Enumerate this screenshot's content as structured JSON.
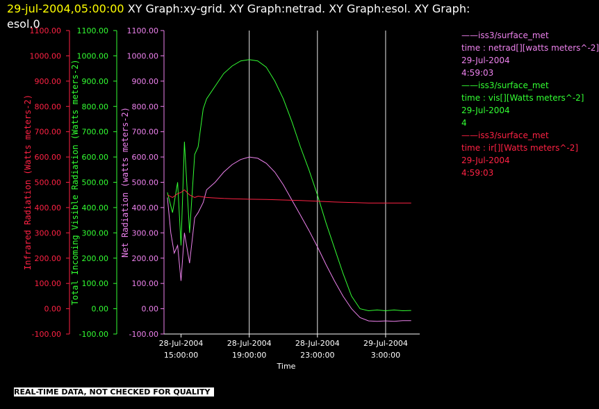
{
  "header": {
    "time": "29-jul-2004,05:00:00",
    "title_rest": "XY Graph:xy-grid.  XY Graph:netrad.  XY Graph:esol.  XY Graph:",
    "title_line2": "esol.0"
  },
  "legend": [
    {
      "line1": "iss3/surface_met",
      "line2": "time : netrad[][watts meters^-2]",
      "line3": "29-Jul-2004",
      "line4": "4:59:03",
      "color": "#ee82ee"
    },
    {
      "line1": "iss3/surface_met",
      "line2": "time : vis[][Watts meters^-2]",
      "line3": "29-Jul-2004",
      "line4": "4",
      "color": "#33ff33"
    },
    {
      "line1": "iss3/surface_met",
      "line2": "time : ir[][Watts meters^-2]",
      "line3": "29-Jul-2004",
      "line4": "4:59:03",
      "color": "#ff2244"
    }
  ],
  "notice": "REAL-TIME DATA, NOT CHECKED FOR QUALITY",
  "chart_data": {
    "type": "line",
    "xlabel": "Time",
    "xlim": [
      14.0,
      29.0
    ],
    "x_ticks": [
      {
        "t": 15,
        "line1": "28-Jul-2004",
        "line2": "15:00:00"
      },
      {
        "t": 19,
        "line1": "28-Jul-2004",
        "line2": "19:00:00"
      },
      {
        "t": 23,
        "line1": "28-Jul-2004",
        "line2": "23:00:00"
      },
      {
        "t": 27,
        "line1": "29-Jul-2004",
        "line2": "3:00:00"
      }
    ],
    "axes": [
      {
        "id": "ir",
        "label": "Infrared Radiation (Watts meters-2)",
        "color": "#ff2244",
        "ylim": [
          -100,
          1100
        ]
      },
      {
        "id": "vis",
        "label": "Total Incoming Visible Radiation (Watts meters-2)",
        "color": "#33ff33",
        "ylim": [
          -100,
          1100
        ]
      },
      {
        "id": "net",
        "label": "Net Radiation (watts meters-2)",
        "color": "#ee82ee",
        "ylim": [
          -100,
          1100
        ]
      }
    ],
    "y_ticks": [
      -100,
      0,
      100,
      200,
      300,
      400,
      500,
      600,
      700,
      800,
      900,
      1000,
      1100
    ],
    "grid_x": [
      19,
      23,
      27
    ],
    "series": [
      {
        "axis": "vis",
        "color": "#33ff33",
        "x": [
          14.2,
          14.5,
          14.8,
          15.0,
          15.2,
          15.5,
          15.8,
          16.0,
          16.3,
          16.5,
          17.0,
          17.5,
          18.0,
          18.5,
          19.0,
          19.5,
          20.0,
          20.5,
          21.0,
          21.5,
          22.0,
          22.5,
          23.0,
          23.5,
          24.0,
          24.5,
          25.0,
          25.5,
          26.0,
          26.5,
          27.0,
          27.5,
          28.0,
          28.5
        ],
        "y": [
          460,
          380,
          500,
          250,
          660,
          300,
          610,
          640,
          790,
          830,
          880,
          930,
          960,
          980,
          985,
          980,
          955,
          900,
          830,
          740,
          640,
          550,
          450,
          340,
          240,
          140,
          50,
          0,
          -8,
          -5,
          -8,
          -5,
          -8,
          -7
        ]
      },
      {
        "axis": "net",
        "color": "#ee82ee",
        "x": [
          14.2,
          14.4,
          14.6,
          14.8,
          15.0,
          15.2,
          15.5,
          15.8,
          16.0,
          16.3,
          16.5,
          17.0,
          17.5,
          18.0,
          18.5,
          19.0,
          19.5,
          20.0,
          20.5,
          21.0,
          21.5,
          22.0,
          22.5,
          23.0,
          23.5,
          24.0,
          24.5,
          25.0,
          25.5,
          26.0,
          26.5,
          27.0,
          27.5,
          28.0,
          28.5
        ],
        "y": [
          440,
          300,
          220,
          250,
          110,
          300,
          180,
          360,
          380,
          420,
          470,
          500,
          540,
          570,
          590,
          600,
          595,
          575,
          540,
          490,
          430,
          370,
          310,
          245,
          175,
          110,
          50,
          0,
          -35,
          -48,
          -50,
          -48,
          -50,
          -47,
          -47
        ]
      },
      {
        "axis": "ir",
        "color": "#ff2244",
        "x": [
          14.2,
          14.5,
          14.8,
          15.0,
          15.2,
          15.5,
          15.8,
          16.0,
          16.5,
          17.0,
          17.5,
          18.0,
          19.0,
          20.0,
          21.0,
          22.0,
          23.0,
          24.0,
          25.0,
          26.0,
          27.0,
          28.0,
          28.5
        ],
        "y": [
          450,
          440,
          455,
          460,
          470,
          450,
          440,
          445,
          440,
          438,
          436,
          435,
          433,
          432,
          430,
          428,
          425,
          422,
          420,
          418,
          418,
          418,
          418
        ]
      }
    ]
  }
}
